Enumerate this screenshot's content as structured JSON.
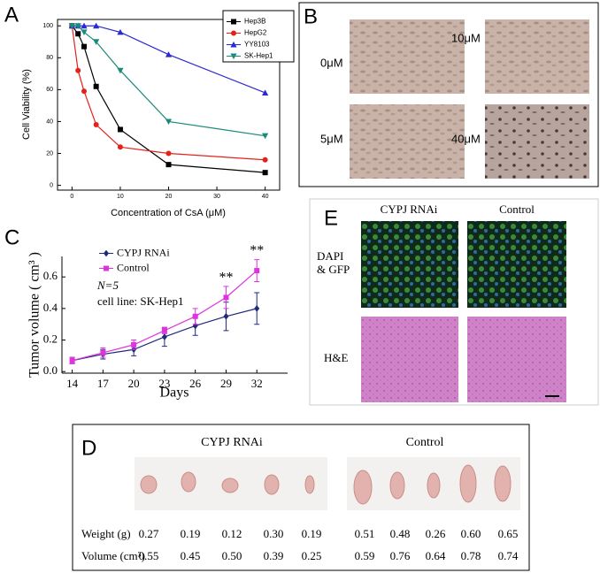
{
  "chart_data": [
    {
      "type": "line",
      "x_label": "Concentration of CsA (μM)",
      "y_label": "Cell Viability (%)",
      "x": [
        0,
        1.25,
        2.5,
        5,
        10,
        20,
        40
      ],
      "xlim": [
        -3,
        43
      ],
      "ylim": [
        -3,
        104
      ],
      "xticks": [
        0,
        10,
        20,
        30,
        40
      ],
      "yticks": [
        0,
        20,
        40,
        60,
        80,
        100
      ],
      "legend": "upper right",
      "series": [
        {
          "name": "Hep3B",
          "color": "#000000",
          "marker": "square",
          "values": [
            100,
            95,
            87,
            62,
            35,
            13,
            8
          ]
        },
        {
          "name": "HepG2",
          "color": "#e3221b",
          "marker": "circle",
          "values": [
            100,
            72,
            59,
            38,
            24,
            20,
            16
          ]
        },
        {
          "name": "YY8103",
          "color": "#2a2ad0",
          "marker": "triangle",
          "values": [
            100,
            100,
            100,
            100,
            96,
            82,
            58
          ]
        },
        {
          "name": "SK-Hep1",
          "color": "#1a8a7a",
          "marker": "triangle-down",
          "values": [
            100,
            100,
            96,
            90,
            72,
            40,
            31
          ]
        }
      ]
    },
    {
      "type": "line",
      "x_label": "Days",
      "y_label": "Tumor volume ( cm³ )",
      "x": [
        14,
        17,
        20,
        23,
        26,
        29,
        32
      ],
      "xlim": [
        13,
        35
      ],
      "ylim": [
        -0.01,
        0.73
      ],
      "xticks": [
        14,
        17,
        20,
        23,
        26,
        29,
        32
      ],
      "yticks": [
        {
          "value": 0,
          "label": "0.0"
        },
        0.2,
        0.4,
        0.6
      ],
      "legend": "upper left",
      "notes": [
        "N=5",
        "cell line: SK-Hep1"
      ],
      "significance": [
        {
          "text": "**",
          "x": 29
        },
        {
          "text": "**",
          "x": 32
        }
      ],
      "series": [
        {
          "name": "CYPJ RNAi",
          "color": "#1f2a7a",
          "marker": "diamond",
          "values": [
            0.07,
            0.11,
            0.14,
            0.22,
            0.29,
            0.35,
            0.4
          ],
          "errors": [
            0.02,
            0.03,
            0.04,
            0.06,
            0.06,
            0.09,
            0.1
          ]
        },
        {
          "name": "Control",
          "color": "#e033e0",
          "marker": "square",
          "values": [
            0.07,
            0.12,
            0.17,
            0.26,
            0.35,
            0.47,
            0.64
          ],
          "errors": [
            0.02,
            0.03,
            0.03,
            0.02,
            0.05,
            0.07,
            0.07
          ]
        }
      ]
    }
  ],
  "panels": {
    "labels": [
      "A",
      "B",
      "C",
      "D",
      "E"
    ],
    "b": {
      "doses": [
        "0μM",
        "10μM",
        "5μM",
        "40μM"
      ]
    },
    "e": {
      "columns": [
        "CYPJ  RNAi",
        "Control"
      ],
      "rows": [
        [
          "DAPI",
          "& GFP"
        ],
        [
          "H&E"
        ]
      ]
    },
    "d": {
      "groups": [
        "CYPJ RNAi",
        "Control"
      ],
      "rows": [
        {
          "label": "Weight (g)",
          "values": [
            "0.27",
            "0.19",
            "0.12",
            "0.30",
            "0.19",
            "0.51",
            "0.48",
            "0.26",
            "0.60",
            "0.65"
          ]
        },
        {
          "label": "Volume (cm³)",
          "values": [
            "0.55",
            "0.45",
            "0.50",
            "0.39",
            "0.25",
            "0.59",
            "0.76",
            "0.64",
            "0.78",
            "0.74"
          ]
        }
      ]
    }
  }
}
